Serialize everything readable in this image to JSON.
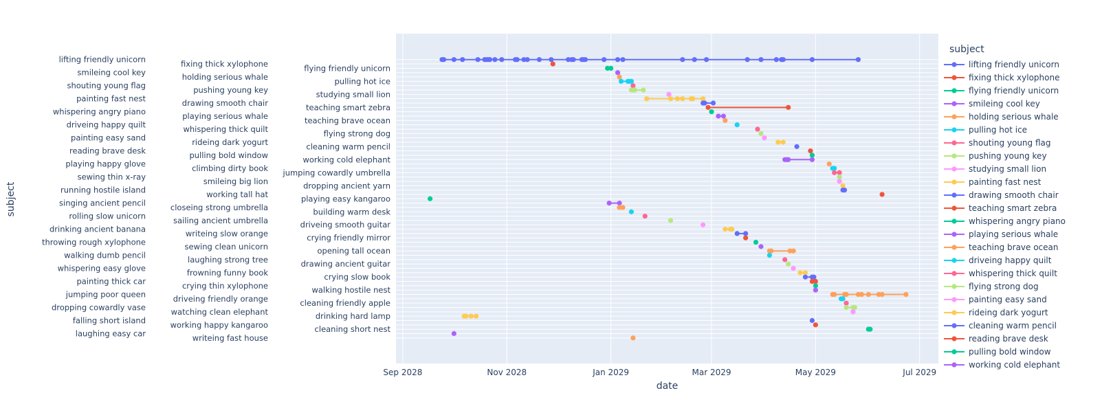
{
  "chart_data": {
    "type": "line",
    "mode": "lines+markers",
    "title": "",
    "xlabel": "date",
    "ylabel": "subject",
    "xlim": [
      "2028-08-28",
      "2029-07-12"
    ],
    "x_ticks": [
      {
        "date": "2028-09-01",
        "label": "Sep 2028"
      },
      {
        "date": "2028-11-01",
        "label": "Nov 2028"
      },
      {
        "date": "2029-01-01",
        "label": "Jan 2029"
      },
      {
        "date": "2029-03-01",
        "label": "Mar 2029"
      },
      {
        "date": "2029-05-01",
        "label": "May 2029"
      },
      {
        "date": "2029-07-01",
        "label": "Jul 2029"
      }
    ],
    "grid": true,
    "background": "#E5ECF6",
    "palette": [
      "#636efa",
      "#EF553B",
      "#00cc96",
      "#ab63fa",
      "#FFA15A",
      "#19d3f3",
      "#FF6692",
      "#B6E880",
      "#FF97FF",
      "#FECB52"
    ],
    "legend": {
      "title": "subject",
      "placement": "right",
      "visible_entries": 24
    },
    "series": [
      {
        "name": "lifting friendly unicorn",
        "x": [
          "2028-09-24",
          "2028-09-25",
          "2028-10-01",
          "2028-10-06",
          "2028-10-15",
          "2028-10-19",
          "2028-10-20",
          "2028-10-21",
          "2028-10-22",
          "2028-10-25",
          "2028-10-29",
          "2028-11-06",
          "2028-11-07",
          "2028-11-11",
          "2028-11-13",
          "2028-11-20",
          "2028-11-27",
          "2028-12-07",
          "2028-12-09",
          "2028-12-10",
          "2028-12-15",
          "2028-12-16",
          "2028-12-17",
          "2028-12-28",
          "2029-01-05",
          "2029-01-08",
          "2029-02-12",
          "2029-02-19",
          "2029-02-26",
          "2029-03-22",
          "2029-03-30",
          "2029-04-08",
          "2029-04-11",
          "2029-04-12",
          "2029-04-29",
          "2029-05-26"
        ]
      },
      {
        "name": "fixing thick xylophone",
        "x": [
          "2028-11-28"
        ]
      },
      {
        "name": "flying friendly unicorn",
        "x": [
          "2028-12-30",
          "2029-01-01"
        ]
      },
      {
        "name": "smileing cool key",
        "x": [
          "2029-01-05"
        ]
      },
      {
        "name": "holding serious whale",
        "x": [
          "2029-01-06"
        ]
      },
      {
        "name": "pulling hot ice",
        "x": [
          "2029-01-07",
          "2029-01-11",
          "2029-01-12",
          "2029-01-13"
        ]
      },
      {
        "name": "shouting young flag",
        "x": [
          "2029-01-14"
        ]
      },
      {
        "name": "pushing young key",
        "x": [
          "2029-01-13",
          "2029-01-14",
          "2029-01-15",
          "2029-01-20"
        ]
      },
      {
        "name": "studying small lion",
        "x": [
          "2029-02-04"
        ]
      },
      {
        "name": "painting fast nest",
        "x": [
          "2029-01-22",
          "2029-02-05",
          "2029-02-09",
          "2029-02-12",
          "2029-02-17",
          "2029-02-18",
          "2029-02-24"
        ]
      },
      {
        "name": "drawing smooth chair",
        "x": [
          "2029-02-24",
          "2029-02-25",
          "2029-03-02"
        ]
      },
      {
        "name": "teaching smart zebra",
        "x": [
          "2029-02-27",
          "2029-04-15"
        ]
      },
      {
        "name": "whispering angry piano",
        "x": [
          "2029-03-01"
        ]
      },
      {
        "name": "playing serious whale",
        "x": [
          "2029-03-05",
          "2029-03-08"
        ]
      },
      {
        "name": "teaching brave ocean",
        "x": [
          "2029-03-09"
        ]
      },
      {
        "name": "driveing happy quilt",
        "x": [
          "2029-03-16"
        ]
      },
      {
        "name": "whispering thick quilt",
        "x": [
          "2029-03-28"
        ]
      },
      {
        "name": "flying strong dog",
        "x": [
          "2029-03-30"
        ]
      },
      {
        "name": "painting easy sand",
        "x": [
          "2029-04-01"
        ]
      },
      {
        "name": "rideing dark yogurt",
        "x": [
          "2029-04-09",
          "2029-04-12"
        ]
      },
      {
        "name": "cleaning warm pencil",
        "x": [
          "2029-04-20"
        ]
      },
      {
        "name": "reading brave desk",
        "x": [
          "2029-04-28"
        ]
      },
      {
        "name": "pulling bold window",
        "x": [
          "2029-04-29"
        ]
      },
      {
        "name": "working cold elephant",
        "x": [
          "2029-04-13",
          "2029-04-14",
          "2029-04-15",
          "2029-04-29"
        ]
      },
      {
        "name": "playing happy glove",
        "x": [
          "2029-05-09"
        ]
      },
      {
        "name": "climbing dirty book",
        "x": [
          "2029-05-11",
          "2029-05-12"
        ]
      },
      {
        "name": "jumping cowardly umbrella",
        "x": [
          "2029-05-12",
          "2029-05-15"
        ]
      },
      {
        "name": "sewing thin x-ray",
        "x": [
          "2029-05-15"
        ]
      },
      {
        "name": "smileing big lion",
        "x": [
          "2029-05-15"
        ]
      },
      {
        "name": "dropping ancient yarn",
        "x": [
          "2029-05-17"
        ]
      },
      {
        "name": "running hostile island",
        "x": [
          "2029-05-17",
          "2029-05-18"
        ]
      },
      {
        "name": "working tall hat",
        "x": [
          "2029-06-09"
        ]
      },
      {
        "name": "playing easy kangaroo",
        "x": [
          "2028-09-17"
        ]
      },
      {
        "name": "singing ancient pencil",
        "x": [
          "2028-12-31",
          "2029-01-06"
        ]
      },
      {
        "name": "closeing strong umbrella",
        "x": [
          "2029-01-06",
          "2029-01-08"
        ]
      },
      {
        "name": "building warm desk",
        "x": [
          "2029-01-13"
        ]
      },
      {
        "name": "rolling slow unicorn",
        "x": [
          "2029-01-21"
        ]
      },
      {
        "name": "sailing ancient umbrella",
        "x": [
          "2029-02-05"
        ]
      },
      {
        "name": "driveing smooth guitar",
        "x": [
          "2029-02-24"
        ]
      },
      {
        "name": "drinking ancient banana",
        "x": [
          "2029-03-09",
          "2029-03-12",
          "2029-03-13"
        ]
      },
      {
        "name": "writeing slow orange",
        "x": [
          "2029-03-16",
          "2029-03-21"
        ]
      },
      {
        "name": "crying friendly mirror",
        "x": [
          "2029-03-21"
        ]
      },
      {
        "name": "throwing rough xylophone",
        "x": [
          "2029-03-27"
        ]
      },
      {
        "name": "sewing clean unicorn",
        "x": [
          "2029-03-30"
        ]
      },
      {
        "name": "opening tall ocean",
        "x": [
          "2029-04-04",
          "2029-04-05",
          "2029-04-16",
          "2029-04-18"
        ]
      },
      {
        "name": "walking dumb pencil",
        "x": [
          "2029-04-04"
        ]
      },
      {
        "name": "laughing strong tree",
        "x": [
          "2029-04-13"
        ]
      },
      {
        "name": "drawing ancient guitar",
        "x": [
          "2029-04-15"
        ]
      },
      {
        "name": "whispering easy glove",
        "x": [
          "2029-04-18"
        ]
      },
      {
        "name": "frowning funny book",
        "x": [
          "2029-04-22",
          "2029-04-25"
        ]
      },
      {
        "name": "crying slow book",
        "x": [
          "2029-04-25",
          "2029-04-29",
          "2029-04-30"
        ]
      },
      {
        "name": "painting thick car",
        "x": [
          "2029-04-29",
          "2029-05-01"
        ]
      },
      {
        "name": "crying thin xylophone",
        "x": [
          "2029-05-01"
        ]
      },
      {
        "name": "walking hostile nest",
        "x": [
          "2029-05-01"
        ]
      },
      {
        "name": "jumping poor queen",
        "x": [
          "2029-05-11",
          "2029-05-12",
          "2029-05-18",
          "2029-05-19",
          "2029-05-26",
          "2029-05-28",
          "2029-06-01",
          "2029-06-07",
          "2029-06-09",
          "2029-06-23"
        ]
      },
      {
        "name": "driveing friendly orange",
        "x": [
          "2029-05-16",
          "2029-05-17"
        ]
      },
      {
        "name": "cleaning friendly apple",
        "x": [
          "2029-05-19"
        ]
      },
      {
        "name": "dropping cowardly vase",
        "x": [
          "2029-05-19",
          "2029-05-23",
          "2029-05-24"
        ]
      },
      {
        "name": "watching clean elephant",
        "x": [
          "2029-05-23"
        ]
      },
      {
        "name": "drinking hard lamp",
        "x": [
          "2028-10-07",
          "2028-10-08",
          "2028-10-11",
          "2028-10-14"
        ]
      },
      {
        "name": "falling short island",
        "x": [
          "2029-04-29"
        ]
      },
      {
        "name": "working happy kangaroo",
        "x": [
          "2029-05-01"
        ]
      },
      {
        "name": "cleaning short nest",
        "x": [
          "2029-06-01",
          "2029-06-02"
        ]
      },
      {
        "name": "laughing easy car",
        "x": [
          "2028-10-01"
        ]
      },
      {
        "name": "writeing fast house",
        "x": [
          "2029-01-14"
        ]
      }
    ]
  }
}
